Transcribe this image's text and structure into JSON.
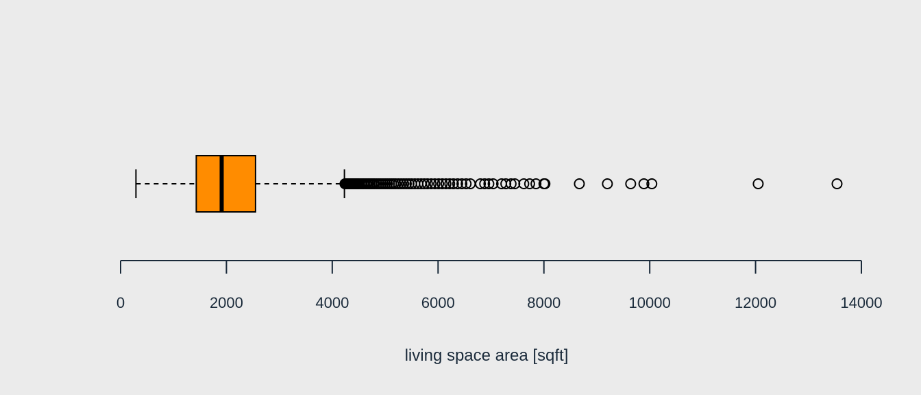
{
  "chart_data": {
    "type": "boxplot",
    "orientation": "horizontal",
    "xlabel": "living space area [sqft]",
    "xlim": [
      0,
      14000
    ],
    "ticks": [
      0,
      2000,
      4000,
      6000,
      8000,
      10000,
      12000,
      14000
    ],
    "tick_labels": [
      "0",
      "2000",
      "4000",
      "6000",
      "8000",
      "10000",
      "12000",
      "14000"
    ],
    "box": {
      "min": 290,
      "q1": 1430,
      "median": 1910,
      "q3": 2550,
      "max": 4230,
      "whisker_style": "dashed"
    },
    "outliers": [
      4240,
      4260,
      4280,
      4300,
      4320,
      4340,
      4360,
      4380,
      4400,
      4420,
      4440,
      4460,
      4480,
      4500,
      4530,
      4560,
      4590,
      4620,
      4650,
      4680,
      4710,
      4740,
      4770,
      4800,
      4840,
      4880,
      4920,
      4960,
      5000,
      5040,
      5080,
      5120,
      5160,
      5200,
      5250,
      5300,
      5350,
      5400,
      5450,
      5500,
      5560,
      5620,
      5680,
      5740,
      5800,
      5870,
      5940,
      6010,
      6080,
      6150,
      6220,
      6290,
      6370,
      6450,
      6530,
      6610,
      6800,
      6880,
      6960,
      7040,
      7200,
      7280,
      7380,
      7450,
      7620,
      7730,
      7850,
      8000,
      8020,
      8670,
      9200,
      9640,
      9890,
      10040,
      12050,
      13540
    ],
    "colors": {
      "box_fill": "#ff8c00",
      "stroke": "#000000",
      "axis": "#1a2a3a",
      "background": "#ebebeb"
    }
  }
}
